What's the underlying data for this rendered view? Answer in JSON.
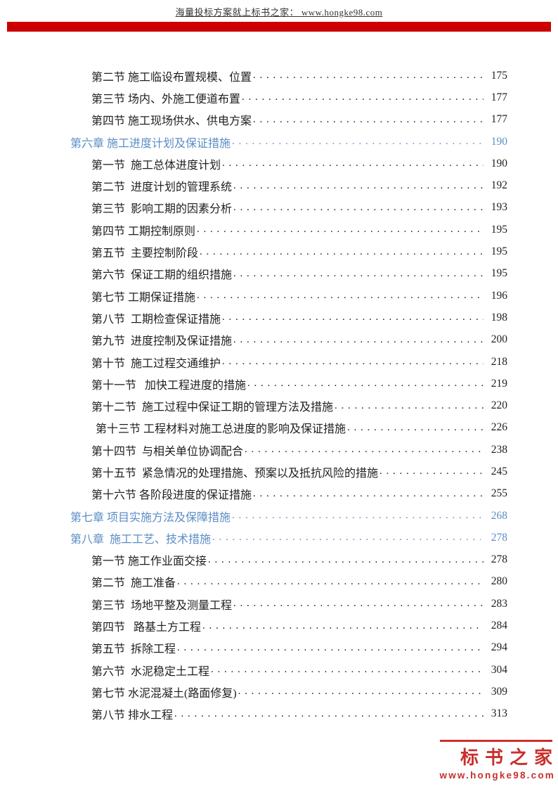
{
  "header": {
    "note": "海量投标方案就上标书之家： www.hongke98.com"
  },
  "toc": {
    "entries": [
      {
        "level": "section",
        "label": "第二节 施工临设布置规模、位置",
        "page": "175"
      },
      {
        "level": "section",
        "label": "第三节 场内、外施工便道布置",
        "page": "177"
      },
      {
        "level": "section",
        "label": "第四节 施工现场供水、供电方案",
        "page": "177"
      },
      {
        "level": "chapter",
        "label": "第六章 施工进度计划及保证措施",
        "page": "190"
      },
      {
        "level": "section",
        "label": "第一节  施工总体进度计划",
        "page": "190"
      },
      {
        "level": "section",
        "label": "第二节  进度计划的管理系统",
        "page": "192"
      },
      {
        "level": "section",
        "label": "第三节  影响工期的因素分析",
        "page": "193"
      },
      {
        "level": "section",
        "label": "第四节 工期控制原则",
        "page": "195"
      },
      {
        "level": "section",
        "label": "第五节  主要控制阶段",
        "page": "195"
      },
      {
        "level": "section",
        "label": "第六节  保证工期的组织措施",
        "page": "195"
      },
      {
        "level": "section",
        "label": "第七节 工期保证措施",
        "page": "196"
      },
      {
        "level": "section",
        "label": "第八节  工期检查保证措施",
        "page": "198"
      },
      {
        "level": "section",
        "label": "第九节  进度控制及保证措施",
        "page": "200"
      },
      {
        "level": "section",
        "label": "第十节  施工过程交通维护",
        "page": "218"
      },
      {
        "level": "section",
        "label": "第十一节   加快工程进度的措施",
        "page": "219"
      },
      {
        "level": "section",
        "label": "第十二节  施工过程中保证工期的管理方法及措施",
        "page": "220"
      },
      {
        "level": "section",
        "label": "第十三节 工程材料对施工总进度的影响及保证措施",
        "page": "226",
        "extra_indent": true
      },
      {
        "level": "section",
        "label": "第十四节  与相关单位协调配合",
        "page": "238"
      },
      {
        "level": "section",
        "label": "第十五节  紧急情况的处理措施、预案以及抵抗风险的措施",
        "page": "245"
      },
      {
        "level": "section",
        "label": "第十六节 各阶段进度的保证措施",
        "page": "255"
      },
      {
        "level": "chapter",
        "label": "第七章 项目实施方法及保障措施",
        "page": "268"
      },
      {
        "level": "chapter",
        "label": "第八章  施工工艺、技术措施",
        "page": "278"
      },
      {
        "level": "section",
        "label": "第一节 施工作业面交接",
        "page": "278"
      },
      {
        "level": "section",
        "label": "第二节  施工准备",
        "page": "280"
      },
      {
        "level": "section",
        "label": "第三节  场地平整及测量工程",
        "page": "283"
      },
      {
        "level": "section",
        "label": "第四节   路基土方工程",
        "page": "284"
      },
      {
        "level": "section",
        "label": "第五节  拆除工程",
        "page": "294"
      },
      {
        "level": "section",
        "label": "第六节  水泥稳定土工程",
        "page": "304"
      },
      {
        "level": "section",
        "label": "第七节 水泥混凝土(路面修复)",
        "page": "309"
      },
      {
        "level": "section",
        "label": "第八节 排水工程",
        "page": "313"
      }
    ]
  },
  "footer": {
    "brand": "标书之家",
    "url": "www.hongke98.com"
  },
  "colors": {
    "chapter_blue": "#5b8dc5",
    "section_black": "#1f1f1f",
    "watermark_red": "#cc0000",
    "logo_red": "#c9302c"
  }
}
